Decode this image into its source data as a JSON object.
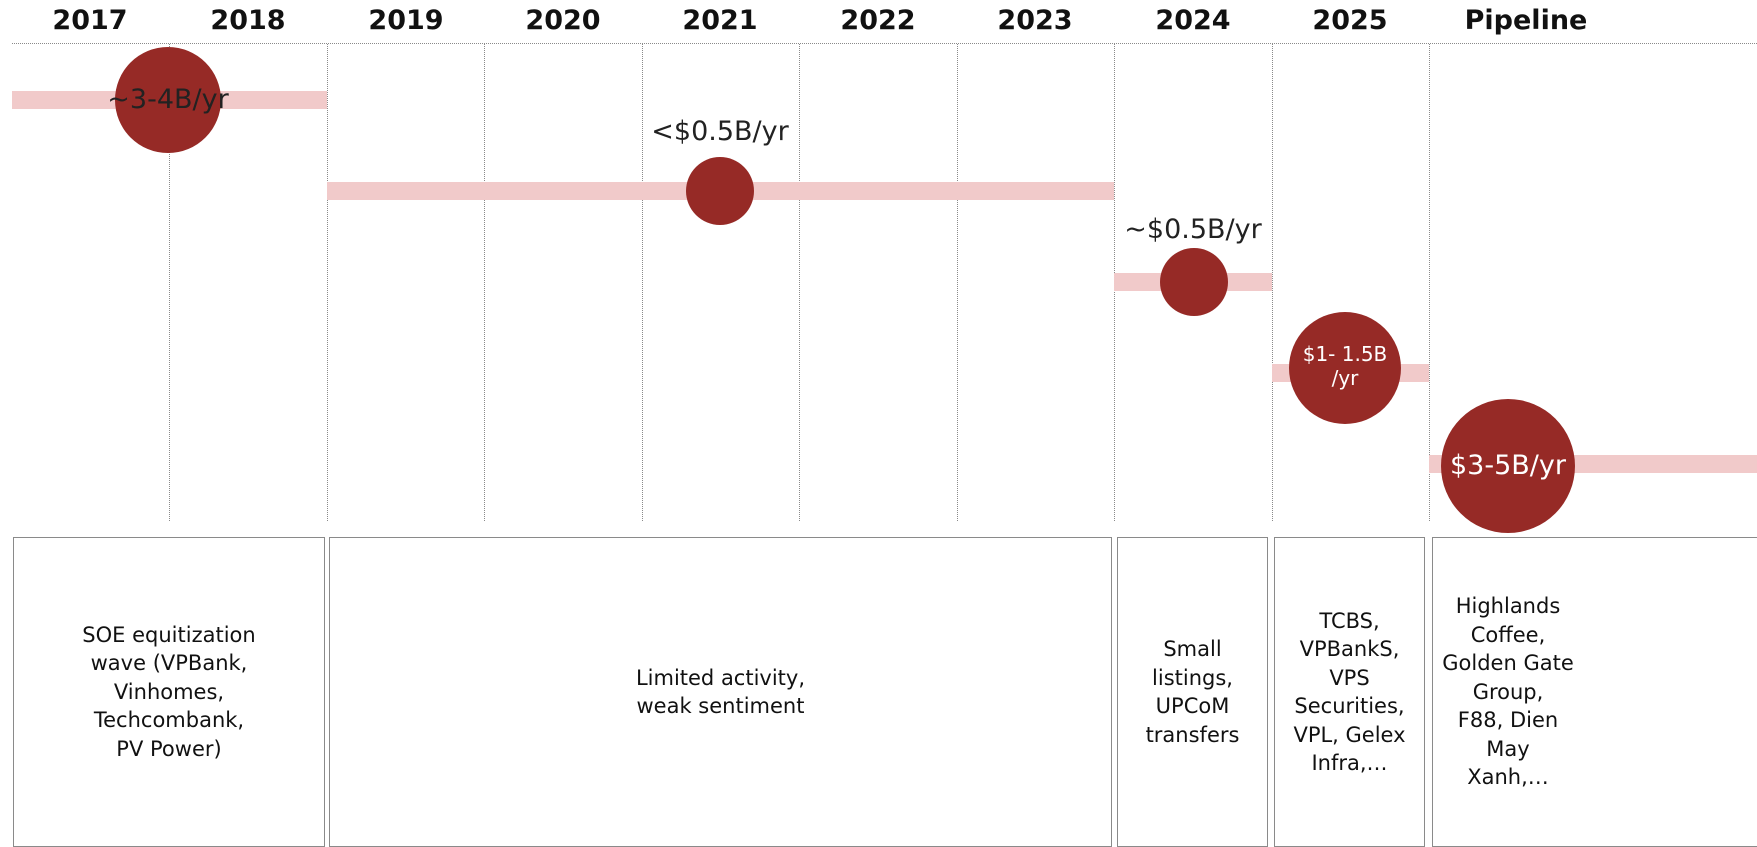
{
  "timeline": {
    "years": [
      "2017",
      "2018",
      "2019",
      "2020",
      "2021",
      "2022",
      "2023",
      "2024",
      "2025",
      "Pipeline"
    ],
    "periods": [
      {
        "bubble_label": "~3-4B/yr",
        "description": "SOE equitization\nwave (VPBank,\nVinhomes,\nTechcombank,\nPV Power)"
      },
      {
        "bubble_label": "<$0.5B/yr",
        "description": "Limited activity,\nweak sentiment"
      },
      {
        "bubble_label": "~$0.5B/yr",
        "description": "Small\nlistings,\nUPCoM\ntransfers"
      },
      {
        "bubble_label": "$1- 1.5B\n/yr",
        "description": "TCBS,\nVPBankS,\nVPS\nSecurities,\nVPL, Gelex\nInfra,…"
      },
      {
        "bubble_label": "$3-5B/yr",
        "description": "Highlands\nCoffee,\nGolden Gate\nGroup,\nF88, Dien\nMay\nXanh,…"
      }
    ]
  },
  "colors": {
    "bubble": "#962a26",
    "band": "#f1caca",
    "gridline": "#8a8a8a"
  }
}
